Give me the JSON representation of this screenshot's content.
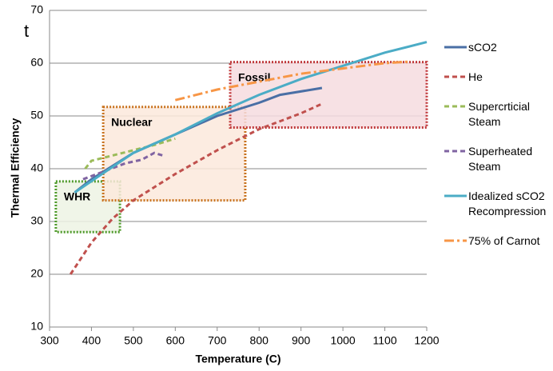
{
  "chart_data": {
    "type": "line",
    "cropped_text": "t",
    "x_label": "Temperature (C)",
    "y_label": "Thermal Efficiency",
    "xlim": [
      300,
      1200
    ],
    "xticks": [
      300,
      400,
      500,
      600,
      700,
      800,
      900,
      1000,
      1100,
      1200
    ],
    "ylim": [
      10,
      70
    ],
    "yticks": [
      10,
      20,
      30,
      40,
      50,
      60,
      70
    ],
    "grid": true,
    "regions": [
      {
        "label": "WHR",
        "x": [
          315,
          468
        ],
        "y": [
          28,
          37.6
        ],
        "color": "#4e9a2a",
        "fill": "#edf3e4"
      },
      {
        "label": "Nuclear",
        "x": [
          428,
          767
        ],
        "y": [
          34,
          51.7
        ],
        "color": "#c8721e",
        "fill": "#fbe9dc"
      },
      {
        "label": "Fossil",
        "x": [
          731,
          1200
        ],
        "y": [
          47.8,
          60.2
        ],
        "color": "#c0393b",
        "fill": "#f6dcdf"
      }
    ],
    "series": [
      {
        "name": "sCO2",
        "color": "#4a6fa5",
        "dash": "",
        "x": [
          360,
          400,
          450,
          500,
          600,
          700,
          800,
          850,
          950
        ],
        "values": [
          35.5,
          38,
          40.5,
          43,
          46.5,
          50,
          52.5,
          54,
          55.3
        ]
      },
      {
        "name": "He",
        "color": "#c0504d",
        "dash": "6 4",
        "x": [
          350,
          400,
          450,
          500,
          600,
          700,
          800,
          900,
          950
        ],
        "values": [
          20,
          26,
          30.5,
          34,
          39,
          43.5,
          47.5,
          50.5,
          52.3
        ]
      },
      {
        "name": "Supercrticial Steam",
        "color": "#9bbb59",
        "dash": "6 4",
        "x": [
          385,
          400,
          450,
          500,
          550,
          600
        ],
        "values": [
          40,
          41.5,
          42.5,
          43.5,
          44.5,
          45.7
        ]
      },
      {
        "name": "Superheated Steam",
        "color": "#8064a2",
        "dash": "6 4",
        "x": [
          380,
          430,
          480,
          520,
          550,
          570
        ],
        "values": [
          38,
          39.5,
          41,
          41.7,
          43,
          42.5
        ]
      },
      {
        "name": "Idealized sCO2 Recompression",
        "color": "#4bacc6",
        "dash": "",
        "x": [
          360,
          500,
          600,
          700,
          800,
          900,
          1000,
          1100,
          1200
        ],
        "values": [
          35.5,
          43,
          46.5,
          50.5,
          54,
          57,
          59.5,
          62,
          64
        ]
      },
      {
        "name": "75% of Carnot",
        "color": "#f79646",
        "dash": "12 4 3 4",
        "x": [
          600,
          700,
          800,
          900,
          1000,
          1100,
          1160
        ],
        "values": [
          53,
          55,
          56.5,
          58,
          59,
          60,
          60.3
        ]
      }
    ]
  }
}
